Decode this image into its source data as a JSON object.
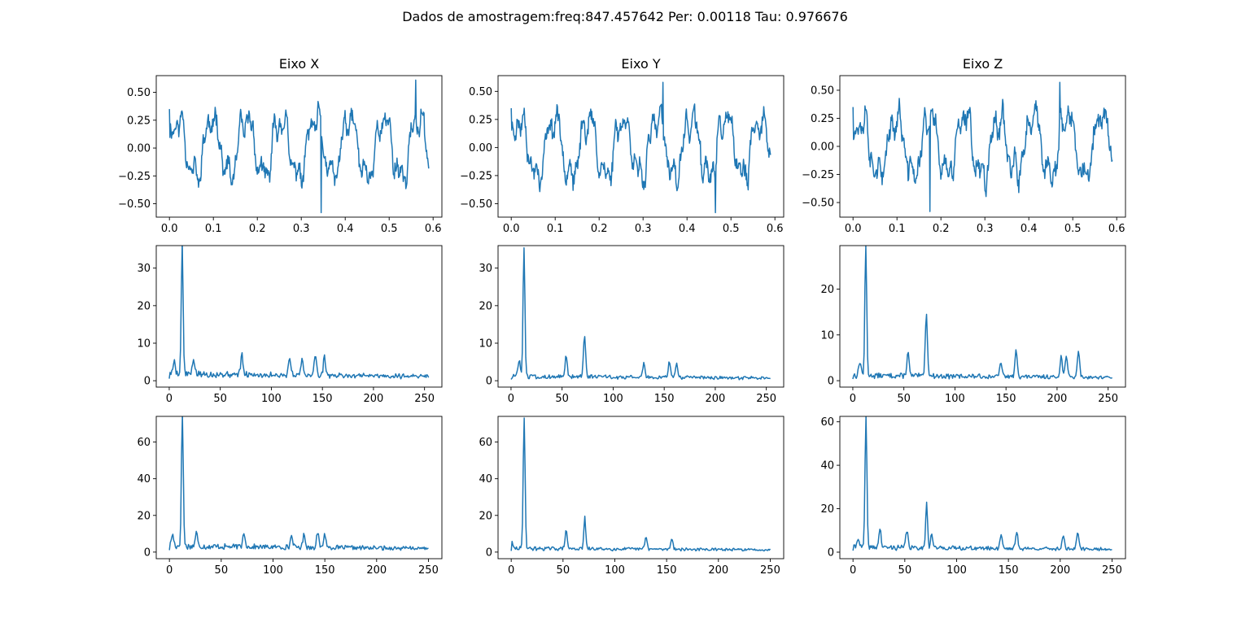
{
  "suptitle": "Dados de amostragem:freq:847.457642 Per: 0.00118 Tau: 0.976676",
  "style": {
    "line_color": "#1f77b4",
    "frame_color": "#000000",
    "grid": false
  },
  "chart_data": [
    {
      "type": "line",
      "title": "Eixo X",
      "xlim": [
        -0.03,
        0.62
      ],
      "ylim": [
        -0.62,
        0.65
      ],
      "xticks": [
        0.0,
        0.1,
        0.2,
        0.3,
        0.4,
        0.5,
        0.6
      ],
      "xtick_labels": [
        "0.0",
        "0.1",
        "0.2",
        "0.3",
        "0.4",
        "0.5",
        "0.6"
      ],
      "yticks": [
        -0.5,
        -0.25,
        0.0,
        0.25,
        0.5
      ],
      "ytick_labels": [
        "−0.50",
        "−0.25",
        "0.00",
        "0.25",
        "0.50"
      ],
      "signal": {
        "kind": "time",
        "xmax": 0.59,
        "n": 500,
        "f0": 12.8,
        "amp": 0.26,
        "noise": 0.1,
        "seed": 11,
        "peak": [
          0.56,
          0.61
        ],
        "trough": [
          0.345,
          -0.58
        ]
      }
    },
    {
      "type": "line",
      "title": "Eixo Y",
      "xlim": [
        -0.03,
        0.62
      ],
      "ylim": [
        -0.62,
        0.64
      ],
      "xticks": [
        0.0,
        0.1,
        0.2,
        0.3,
        0.4,
        0.5,
        0.6
      ],
      "xtick_labels": [
        "0.0",
        "0.1",
        "0.2",
        "0.3",
        "0.4",
        "0.5",
        "0.6"
      ],
      "yticks": [
        -0.5,
        -0.25,
        0.0,
        0.25,
        0.5
      ],
      "ytick_labels": [
        "−0.50",
        "−0.25",
        "0.00",
        "0.25",
        "0.50"
      ],
      "signal": {
        "kind": "time",
        "xmax": 0.59,
        "n": 500,
        "f0": 12.8,
        "amp": 0.26,
        "noise": 0.1,
        "seed": 23,
        "peak": [
          0.345,
          0.58
        ],
        "trough": [
          0.465,
          -0.58
        ]
      }
    },
    {
      "type": "line",
      "title": "Eixo Z",
      "xlim": [
        -0.03,
        0.62
      ],
      "ylim": [
        -0.63,
        0.63
      ],
      "xticks": [
        0.0,
        0.1,
        0.2,
        0.3,
        0.4,
        0.5,
        0.6
      ],
      "xtick_labels": [
        "0.0",
        "0.1",
        "0.2",
        "0.3",
        "0.4",
        "0.5",
        "0.6"
      ],
      "yticks": [
        -0.5,
        -0.25,
        0.0,
        0.25,
        0.5
      ],
      "ytick_labels": [
        "−0.50",
        "−0.25",
        "0.00",
        "0.25",
        "0.50"
      ],
      "signal": {
        "kind": "time",
        "xmax": 0.59,
        "n": 500,
        "f0": 12.8,
        "amp": 0.26,
        "noise": 0.12,
        "seed": 37,
        "peak": [
          0.47,
          0.57
        ],
        "trough": [
          0.175,
          -0.58
        ]
      }
    },
    {
      "type": "line",
      "title": "",
      "xlim": [
        -12.7,
        267
      ],
      "ylim": [
        -1.7,
        36.0
      ],
      "xticks": [
        0,
        50,
        100,
        150,
        200,
        250
      ],
      "xtick_labels": [
        "0",
        "50",
        "100",
        "150",
        "200",
        "250"
      ],
      "yticks": [
        0,
        10,
        20,
        30
      ],
      "ytick_labels": [
        "0",
        "10",
        "20",
        "30"
      ],
      "signal": {
        "kind": "spectrum",
        "xmax": 254,
        "n": 300,
        "base": 1.8,
        "decay": 0.6,
        "seed": 5,
        "peaks": [
          [
            12.7,
            34.5
          ],
          [
            5,
            3.6
          ],
          [
            24,
            4.0
          ],
          [
            71,
            5.2
          ],
          [
            118,
            4.6
          ],
          [
            130,
            4.8
          ],
          [
            143,
            5.4
          ],
          [
            152,
            4.9
          ]
        ]
      }
    },
    {
      "type": "line",
      "title": "",
      "xlim": [
        -12.7,
        267
      ],
      "ylim": [
        -1.7,
        36.0
      ],
      "xticks": [
        0,
        50,
        100,
        150,
        200,
        250
      ],
      "xtick_labels": [
        "0",
        "50",
        "100",
        "150",
        "200",
        "250"
      ],
      "yticks": [
        0,
        10,
        20,
        30
      ],
      "ytick_labels": [
        "0",
        "10",
        "20",
        "30"
      ],
      "signal": {
        "kind": "spectrum",
        "xmax": 254,
        "n": 300,
        "base": 1.2,
        "decay": 0.3,
        "seed": 8,
        "peaks": [
          [
            12.7,
            34.5
          ],
          [
            8,
            4.6
          ],
          [
            54,
            5.7
          ],
          [
            72,
            11.2
          ],
          [
            130,
            3.8
          ],
          [
            155,
            4.0
          ],
          [
            162,
            3.5
          ]
        ]
      }
    },
    {
      "type": "line",
      "title": "",
      "xlim": [
        -12.7,
        267
      ],
      "ylim": [
        -1.4,
        29.5
      ],
      "xticks": [
        0,
        50,
        100,
        150,
        200,
        250
      ],
      "xtick_labels": [
        "0",
        "50",
        "100",
        "150",
        "200",
        "250"
      ],
      "yticks": [
        0,
        10,
        20
      ],
      "ytick_labels": [
        "0",
        "10",
        "20"
      ],
      "signal": {
        "kind": "spectrum",
        "xmax": 254,
        "n": 300,
        "base": 1.2,
        "decay": 0.3,
        "seed": 13,
        "peaks": [
          [
            12.7,
            28.2
          ],
          [
            7,
            3.2
          ],
          [
            54,
            5.1
          ],
          [
            72,
            13.3
          ],
          [
            145,
            3.2
          ],
          [
            160,
            5.8
          ],
          [
            204,
            4.5
          ],
          [
            209,
            4.8
          ],
          [
            221,
            5.8
          ]
        ]
      }
    },
    {
      "type": "line",
      "title": "",
      "xlim": [
        -12.7,
        263
      ],
      "ylim": [
        -3.6,
        74.0
      ],
      "xticks": [
        0,
        50,
        100,
        150,
        200,
        250
      ],
      "xtick_labels": [
        "0",
        "50",
        "100",
        "150",
        "200",
        "250"
      ],
      "yticks": [
        0,
        20,
        40,
        60
      ],
      "ytick_labels": [
        "0",
        "20",
        "40",
        "60"
      ],
      "signal": {
        "kind": "spectrum",
        "xmax": 250,
        "n": 300,
        "base": 3.5,
        "decay": 0.7,
        "seed": 17,
        "peaks": [
          [
            12.5,
            72
          ],
          [
            3,
            6.5
          ],
          [
            26,
            7.5
          ],
          [
            72,
            8.0
          ],
          [
            118,
            6.5
          ],
          [
            130,
            7.2
          ],
          [
            143,
            8.3
          ],
          [
            150,
            7.5
          ]
        ]
      }
    },
    {
      "type": "line",
      "title": "",
      "xlim": [
        -12.7,
        263
      ],
      "ylim": [
        -3.6,
        74.0
      ],
      "xticks": [
        0,
        50,
        100,
        150,
        200,
        250
      ],
      "xtick_labels": [
        "0",
        "50",
        "100",
        "150",
        "200",
        "250"
      ],
      "yticks": [
        0,
        20,
        40,
        60
      ],
      "ytick_labels": [
        "0",
        "20",
        "40",
        "60"
      ],
      "signal": {
        "kind": "spectrum",
        "xmax": 250,
        "n": 300,
        "base": 2.2,
        "decay": 0.4,
        "seed": 29,
        "peaks": [
          [
            12.5,
            72
          ],
          [
            0,
            4.0
          ],
          [
            53,
            9.5
          ],
          [
            71,
            17
          ],
          [
            130,
            6.5
          ],
          [
            155,
            6.0
          ]
        ]
      }
    },
    {
      "type": "line",
      "title": "",
      "xlim": [
        -12.7,
        263
      ],
      "ylim": [
        -3.0,
        62.5
      ],
      "xticks": [
        0,
        50,
        100,
        150,
        200,
        250
      ],
      "xtick_labels": [
        "0",
        "50",
        "100",
        "150",
        "200",
        "250"
      ],
      "yticks": [
        0,
        20,
        40,
        60
      ],
      "ytick_labels": [
        "0",
        "20",
        "40",
        "60"
      ],
      "signal": {
        "kind": "spectrum",
        "xmax": 250,
        "n": 300,
        "base": 2.4,
        "decay": 0.5,
        "seed": 41,
        "peaks": [
          [
            12.5,
            60
          ],
          [
            5,
            4.5
          ],
          [
            26,
            8.5
          ],
          [
            52,
            8.0
          ],
          [
            71,
            21.5
          ],
          [
            76,
            6
          ],
          [
            143,
            6.5
          ],
          [
            158,
            7.5
          ],
          [
            203,
            6.5
          ],
          [
            217,
            7.5
          ]
        ]
      }
    }
  ]
}
